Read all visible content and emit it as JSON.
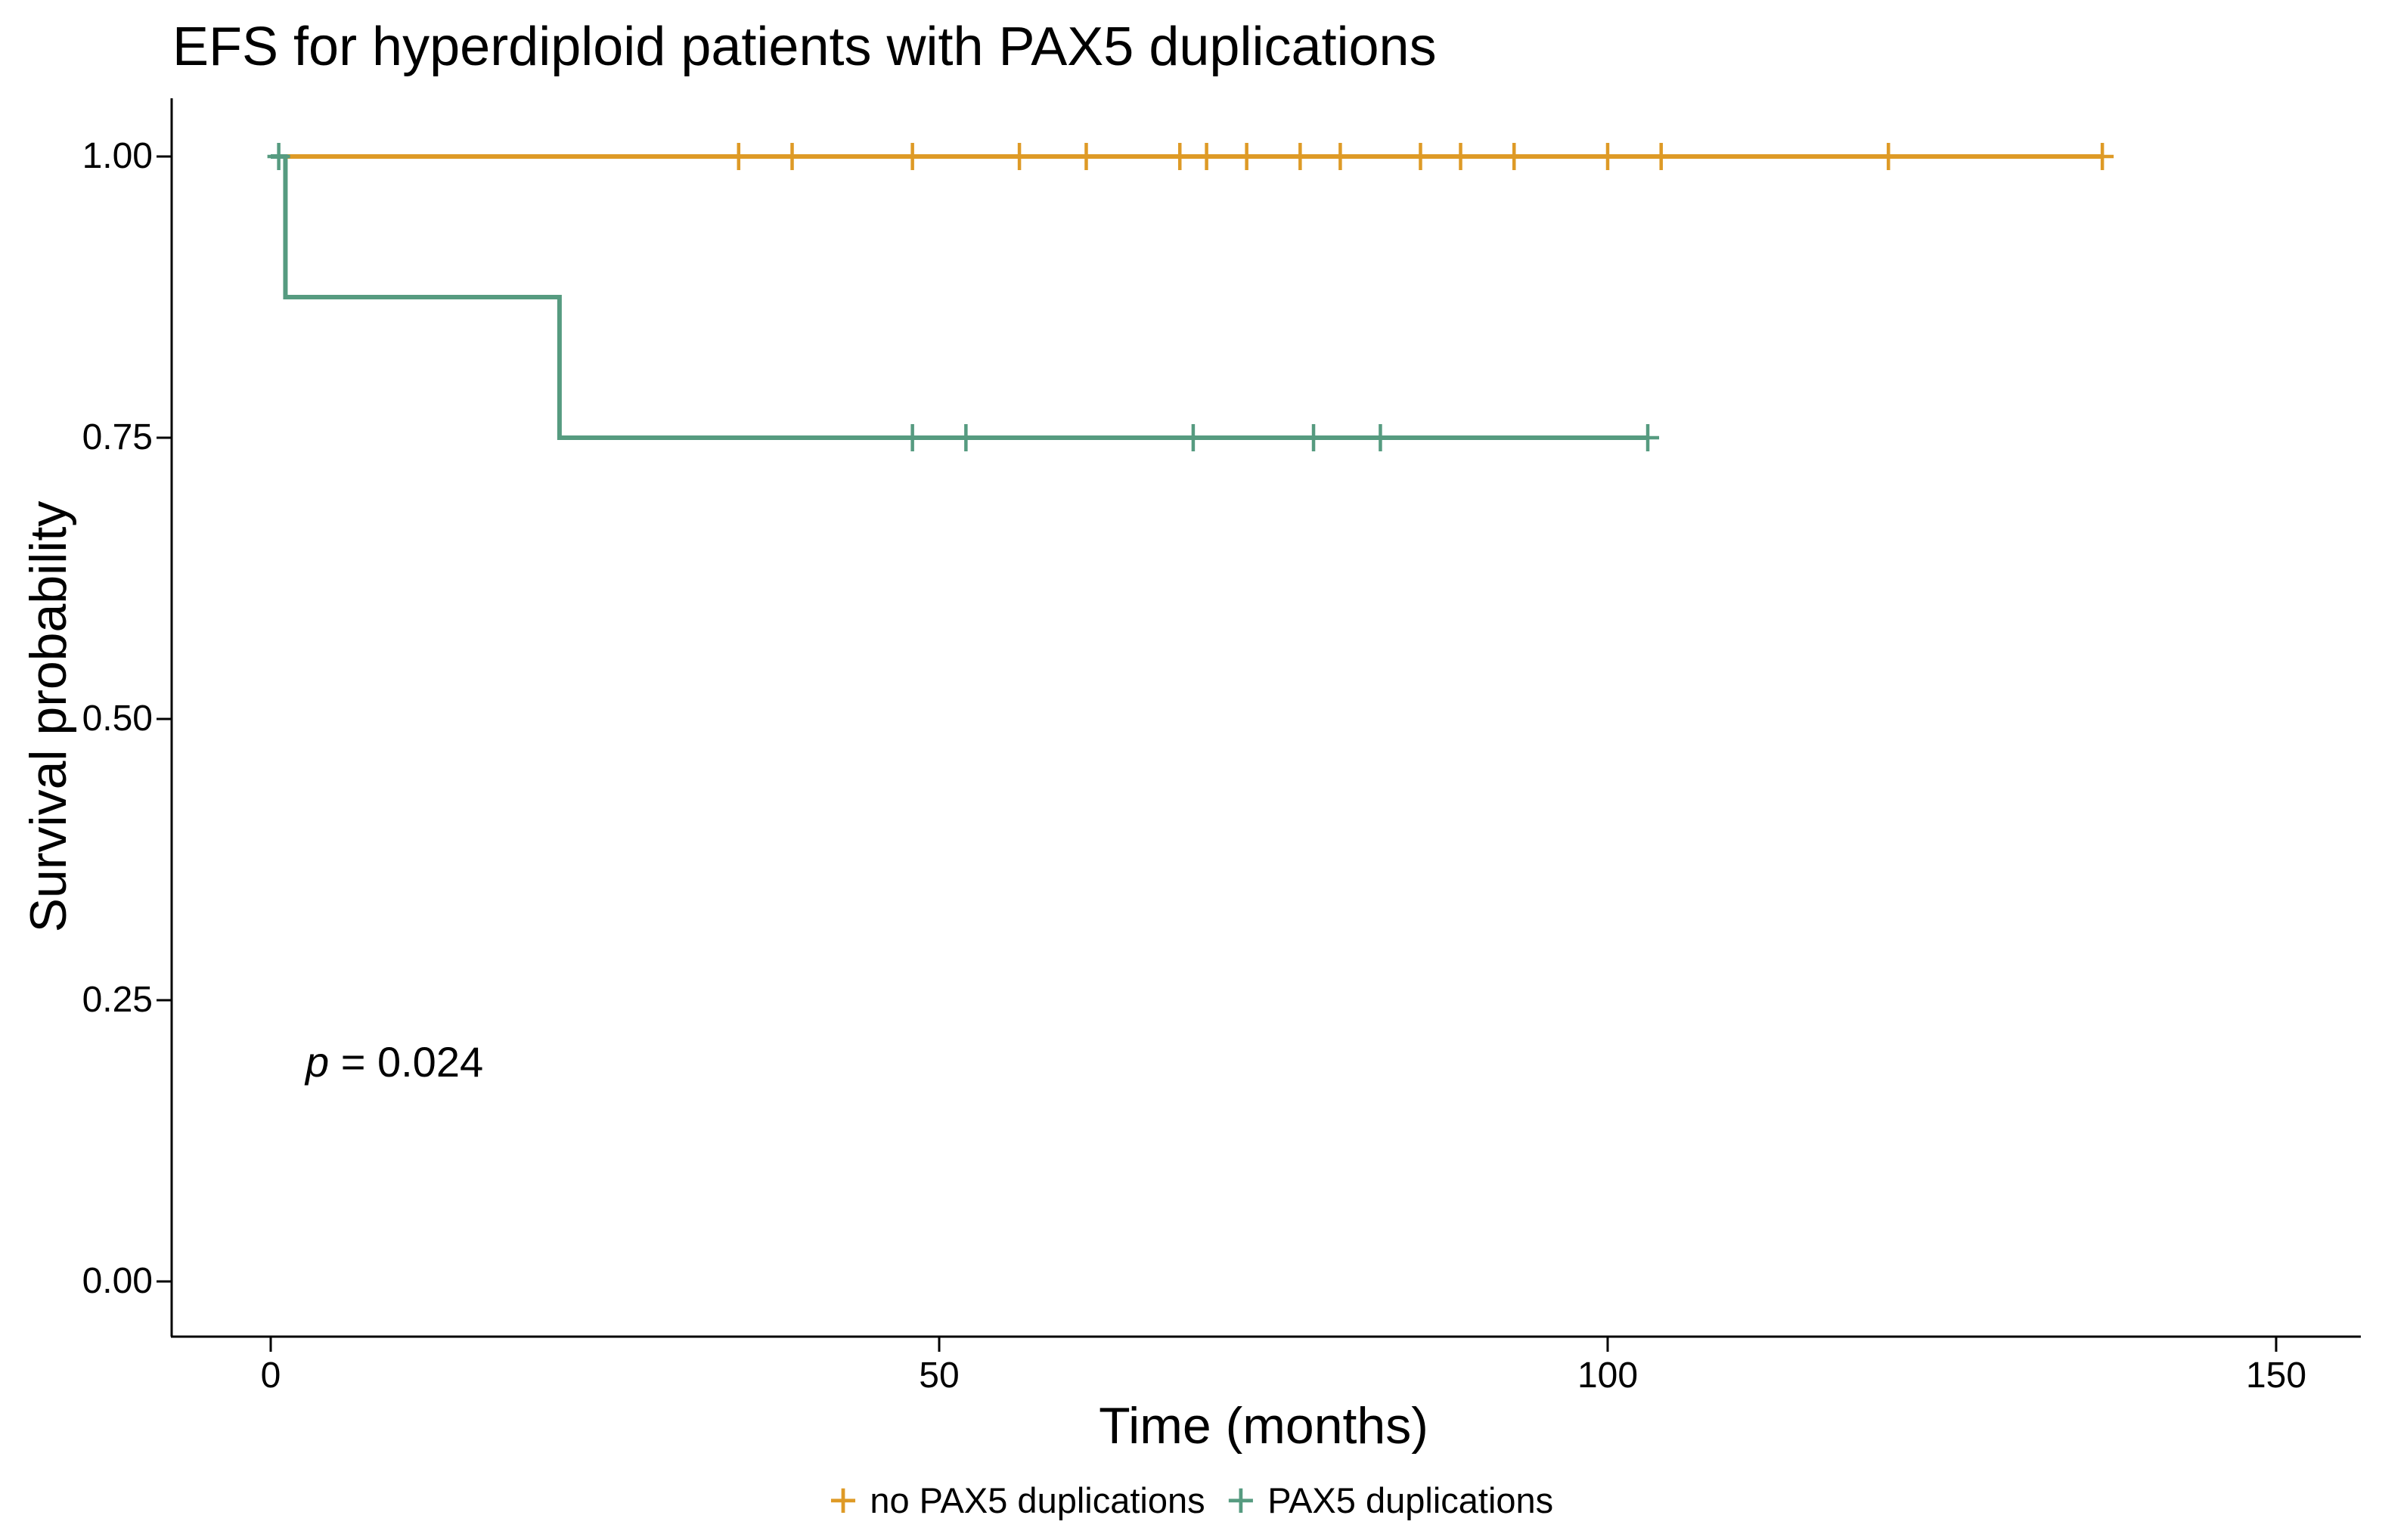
{
  "title": "EFS for hyperdiploid patients with PAX5 duplications",
  "p_value": {
    "symbol": "p",
    "text": " = 0.024"
  },
  "legend": {
    "position": "bottom",
    "items": [
      {
        "label": "no PAX5 duplications",
        "marker": "+",
        "color": "#DE9A26"
      },
      {
        "label": "PAX5 duplications",
        "marker": "+",
        "color": "#569B80"
      }
    ]
  },
  "chart_data": {
    "type": "line",
    "subtype": "kaplan-meier-step",
    "title": "EFS for hyperdiploid patients with PAX5 duplications",
    "xlabel": "Time (months)",
    "ylabel": "Survival probability",
    "xlim": [
      0,
      150
    ],
    "ylim": [
      0,
      1
    ],
    "grid": false,
    "legend_position": "bottom",
    "x_ticks": [
      0,
      50,
      100,
      150
    ],
    "x_tick_labels": [
      "0",
      "50",
      "100",
      "150"
    ],
    "y_ticks": [
      0,
      0.25,
      0.5,
      0.75,
      1
    ],
    "y_tick_labels": [
      "0.00",
      "0.25",
      "0.50",
      "0.75",
      "1.00"
    ],
    "annotations": [
      {
        "text": "p = 0.024",
        "x": 2.7,
        "y": 0.19
      }
    ],
    "series": [
      {
        "name": "no PAX5 duplications",
        "color": "#DE9A26",
        "step_points": [
          [
            0,
            1.0
          ]
        ],
        "end_time": 137,
        "censors": [
          [
            35,
            1.0
          ],
          [
            39,
            1.0
          ],
          [
            48,
            1.0
          ],
          [
            56,
            1.0
          ],
          [
            61,
            1.0
          ],
          [
            68,
            1.0
          ],
          [
            70,
            1.0
          ],
          [
            73,
            1.0
          ],
          [
            77,
            1.0
          ],
          [
            80,
            1.0
          ],
          [
            86,
            1.0
          ],
          [
            89,
            1.0
          ],
          [
            93,
            1.0
          ],
          [
            100,
            1.0
          ],
          [
            104,
            1.0
          ],
          [
            121,
            1.0
          ],
          [
            137,
            1.0
          ]
        ]
      },
      {
        "name": "PAX5 duplications",
        "color": "#569B80",
        "step_points": [
          [
            0,
            1.0
          ],
          [
            1.1,
            0.875
          ],
          [
            21.6,
            0.75
          ]
        ],
        "end_time": 103,
        "censors": [
          [
            0.6,
            1.0
          ],
          [
            48,
            0.75
          ],
          [
            52,
            0.75
          ],
          [
            69,
            0.75
          ],
          [
            78,
            0.75
          ],
          [
            83,
            0.75
          ],
          [
            103,
            0.75
          ]
        ]
      }
    ]
  }
}
